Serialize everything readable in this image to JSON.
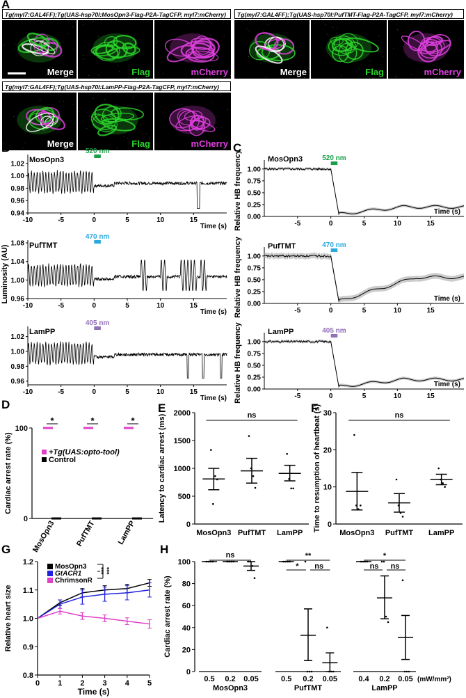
{
  "panels": {
    "A": "A",
    "B": "B",
    "C": "C",
    "D": "D",
    "E": "E",
    "F": "F",
    "G": "G",
    "H": "H"
  },
  "panelA": {
    "genotypes": [
      "Tg(myl7:GAL4FF);Tg(UAS-hsp70l:MosOpn3-Flag-P2A-TagCFP, myl7:mCherry)",
      "Tg(myl7:GAL4FF);Tg(UAS-hsp70l:PufTMT-Flag-P2A-TagCFP, myl7:mCherry)",
      "Tg(myl7:GAL4FF);Tg(UAS-hsp70l:LamPP-Flag-P2A-TagCFP, myl7:mCherry)"
    ],
    "labels": {
      "merge": "Merge",
      "flag": "Flag",
      "mcherry": "mCherry"
    },
    "colors": {
      "flag": "#2bd62b",
      "mcherry": "#e040e0",
      "merge": "#ffffff"
    }
  },
  "panelB": {
    "ylabel": "Luminosity (AU)",
    "xlabel": "Time (s)",
    "xticks": [
      "-10",
      "-5",
      "0",
      "5",
      "10",
      "15"
    ],
    "traces": [
      {
        "name": "MosOpn3",
        "stim": "520 nm",
        "color": "#1a9e4a",
        "yticks": [
          "1.02",
          "1.00",
          "0.98",
          "0.96",
          "0.94"
        ]
      },
      {
        "name": "PufTMT",
        "stim": "470 nm",
        "color": "#29a9e0",
        "yticks": [
          "1.08",
          "1.04",
          "1.00",
          "0.96"
        ]
      },
      {
        "name": "LamPP",
        "stim": "405 nm",
        "color": "#9270b8",
        "yticks": [
          "1.02",
          "1.00",
          "0.98",
          "0.96"
        ]
      }
    ]
  },
  "panelC": {
    "ylabel": "Relative HB frequency",
    "xlabel": "Time (s)",
    "xticks": [
      "-5",
      "0",
      "5",
      "10",
      "15"
    ],
    "yticks": [
      "1.00",
      "0.75",
      "0.50",
      "0.25",
      "0.00"
    ],
    "traces": [
      {
        "name": "MosOpn3",
        "stim": "520 nm",
        "color": "#1a9e4a"
      },
      {
        "name": "PufTMT",
        "stim": "470 nm",
        "color": "#29a9e0"
      },
      {
        "name": "LamPP",
        "stim": "405 nm",
        "color": "#9270b8"
      }
    ]
  },
  "chart_data": [
    {
      "panel": "D",
      "type": "bar",
      "categories": [
        "MosOpn3",
        "PufTMT",
        "LamPP"
      ],
      "series": [
        {
          "name": "+Tg(UAS:opto-tool)",
          "values": [
            100,
            100,
            100
          ],
          "color": "#e040c8"
        },
        {
          "name": "Control",
          "values": [
            0,
            0,
            0
          ],
          "color": "#000000"
        }
      ],
      "ylabel": "Cardiac arrest rate (%)",
      "yticks": [
        "0",
        "100"
      ],
      "ylim": [
        0,
        100
      ],
      "significance": [
        "*",
        "*",
        "*"
      ]
    },
    {
      "panel": "E",
      "type": "scatter",
      "categories": [
        "MosOpn3",
        "PufTMT",
        "LamPP"
      ],
      "means": [
        810,
        955,
        910
      ],
      "err": [
        [
          615,
          1000
        ],
        [
          735,
          1180
        ],
        [
          775,
          1055
        ]
      ],
      "points": [
        [
          1330,
          360,
          860,
          800
        ],
        [
          1580,
          1000,
          860,
          650
        ],
        [
          1260,
          810,
          640,
          640
        ]
      ],
      "ylabel": "Latency to cardiac arrest (ms)",
      "yticks": [
        "0",
        "500",
        "1000",
        "1500",
        "2000"
      ],
      "ylim": [
        0,
        2000
      ],
      "significance": "ns"
    },
    {
      "panel": "F",
      "type": "scatter",
      "categories": [
        "MosOpn3",
        "PufTMT",
        "LamPP"
      ],
      "means": [
        8.8,
        5.7,
        12
      ],
      "err": [
        [
          3.8,
          13.9
        ],
        [
          3.2,
          8.2
        ],
        [
          10.6,
          13.4
        ]
      ],
      "points": [
        [
          24,
          5,
          4,
          5
        ],
        [
          12,
          5,
          3,
          2
        ],
        [
          15,
          12,
          11,
          10
        ]
      ],
      "ylabel": "Time to resumption of heartbeat (s)",
      "yticks": [
        "0",
        "10",
        "20",
        "30"
      ],
      "ylim": [
        0,
        30
      ],
      "significance": "ns"
    },
    {
      "panel": "G",
      "type": "line",
      "x": [
        0,
        1,
        2,
        3,
        4,
        5
      ],
      "series": [
        {
          "name": "MosOpn3",
          "values": [
            1.0,
            1.055,
            1.09,
            1.1,
            1.105,
            1.125
          ],
          "err": [
            0,
            0.01,
            0.015,
            0.015,
            0.015,
            0.012
          ],
          "color": "#000000"
        },
        {
          "name": "GtACR1",
          "values": [
            1.0,
            1.05,
            1.075,
            1.085,
            1.09,
            1.1
          ],
          "err": [
            0,
            0.015,
            0.025,
            0.025,
            0.025,
            0.025
          ],
          "color": "#2020e0"
        },
        {
          "name": "ChrimsonR",
          "values": [
            1.0,
            1.025,
            1.008,
            1.0,
            0.99,
            0.98
          ],
          "err": [
            0,
            0.01,
            0.012,
            0.012,
            0.012,
            0.015
          ],
          "color": "#e040c8"
        }
      ],
      "xlabel": "Time (s)",
      "ylabel": "Relative heart size",
      "yticks": [
        "0.8",
        "0.9",
        "1.0",
        "1.1",
        "1.2"
      ],
      "xticks": [
        "0",
        "1",
        "2",
        "3",
        "4",
        "5"
      ],
      "ylim": [
        0.8,
        1.2
      ],
      "xlim": [
        0,
        5
      ],
      "significance": [
        "***",
        "***"
      ]
    },
    {
      "panel": "H",
      "type": "scatter",
      "groups": [
        {
          "name": "MosOpn3",
          "categories": [
            "0.5",
            "0.2",
            "0.05"
          ],
          "means": [
            100,
            100,
            96
          ],
          "err": [
            [
              100,
              100
            ],
            [
              100,
              100
            ],
            [
              92,
              100
            ]
          ],
          "points": [
            [
              100,
              100,
              100,
              100
            ],
            [
              100,
              100,
              100,
              100
            ],
            [
              100,
              100,
              96,
              85
            ]
          ],
          "sig": [
            "ns"
          ]
        },
        {
          "name": "PufTMT",
          "categories": [
            "0.5",
            "0.2",
            "0.05"
          ],
          "means": [
            100,
            33,
            8
          ],
          "err": [
            [
              100,
              100
            ],
            [
              10,
              57
            ],
            [
              0,
              17
            ]
          ],
          "points": [
            [
              100,
              100,
              100,
              100
            ],
            [
              100,
              0,
              0,
              0
            ],
            [
              40,
              0,
              0,
              0
            ]
          ],
          "sig": [
            "**",
            "*",
            "ns"
          ]
        },
        {
          "name": "LamPP",
          "categories": [
            "0.4",
            "0.2",
            "0.05"
          ],
          "means": [
            100,
            67,
            31
          ],
          "err": [
            [
              100,
              100
            ],
            [
              48,
              87
            ],
            [
              11,
              51
            ]
          ],
          "points": [
            [
              100,
              100,
              100,
              100
            ],
            [
              100,
              100,
              50,
              45
            ],
            [
              83,
              0,
              0,
              0
            ]
          ],
          "sig": [
            "*",
            "ns",
            "ns"
          ]
        }
      ],
      "ylabel": "Cardiac arrest rate (%)",
      "unit": "(mW/mm²)",
      "yticks": [
        "0",
        "20",
        "40",
        "60",
        "80",
        "100"
      ],
      "ylim": [
        0,
        100
      ]
    }
  ]
}
